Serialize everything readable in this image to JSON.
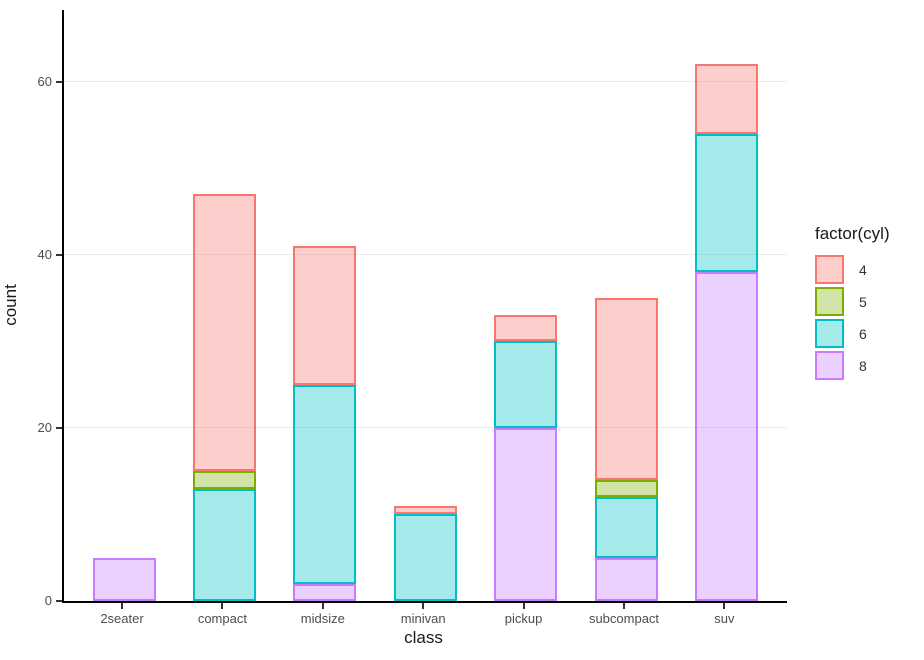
{
  "chart_data": {
    "type": "bar",
    "stacked": true,
    "title": "",
    "xlabel": "class",
    "ylabel": "count",
    "categories": [
      "2seater",
      "compact",
      "midsize",
      "minivan",
      "pickup",
      "subcompact",
      "suv"
    ],
    "series": [
      {
        "name": "4",
        "color": "#F8766D",
        "values": [
          0,
          32,
          16,
          1,
          3,
          21,
          8
        ]
      },
      {
        "name": "5",
        "color": "#7CAE00",
        "values": [
          0,
          2,
          0,
          0,
          0,
          2,
          0
        ]
      },
      {
        "name": "6",
        "color": "#00BFC4",
        "values": [
          0,
          13,
          23,
          10,
          10,
          7,
          16
        ]
      },
      {
        "name": "8",
        "color": "#C77CFF",
        "values": [
          5,
          0,
          2,
          0,
          20,
          5,
          38
        ]
      }
    ],
    "stack_order_bottom_to_top": [
      "8",
      "6",
      "5",
      "4"
    ],
    "totals": [
      5,
      47,
      41,
      11,
      33,
      35,
      62
    ],
    "y_ticks": [
      0,
      20,
      40,
      60
    ],
    "ylim": [
      0,
      68
    ],
    "grid": "major-y-only",
    "legend_position": "right",
    "fill_alpha": 0.35,
    "legend": {
      "title": "factor(cyl)",
      "items": [
        {
          "label": "4",
          "color": "#F8766D"
        },
        {
          "label": "5",
          "color": "#7CAE00"
        },
        {
          "label": "6",
          "color": "#00BFC4"
        },
        {
          "label": "8",
          "color": "#C77CFF"
        }
      ]
    },
    "colors": {
      "axis_line": "#000000",
      "tick_label": "#4d4d4d",
      "axis_title": "#1a1a1a",
      "gridline": "#ebebeb",
      "background": "#ffffff"
    }
  }
}
